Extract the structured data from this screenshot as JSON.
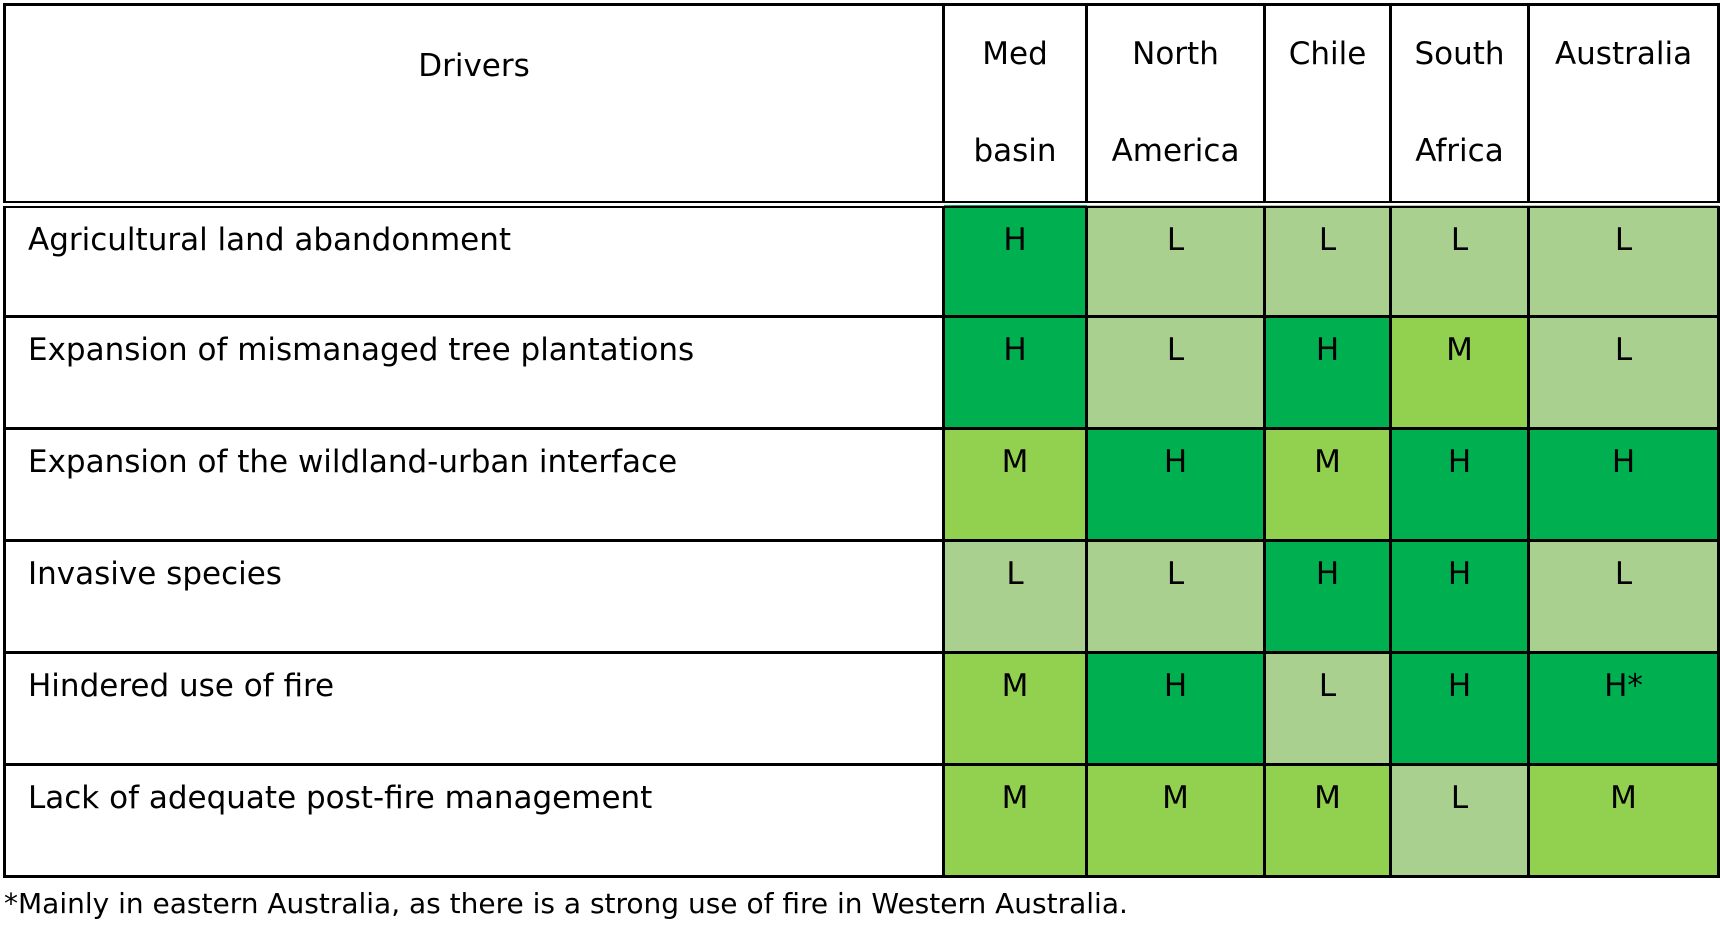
{
  "table": {
    "header": {
      "drivers": "Drivers",
      "columns": [
        [
          "Med",
          "basin"
        ],
        [
          "North",
          "America"
        ],
        [
          "Chile"
        ],
        [
          "South",
          "Africa"
        ],
        [
          "Australia"
        ]
      ]
    },
    "rows": [
      {
        "driver": "Agricultural land abandonment",
        "cells": [
          "H",
          "L",
          "L",
          "L",
          "L"
        ]
      },
      {
        "driver": "Expansion of mismanaged tree plantations",
        "cells": [
          "H",
          "L",
          "H",
          "M",
          "L"
        ]
      },
      {
        "driver": "Expansion of the wildland-urban interface",
        "cells": [
          "M",
          "H",
          "M",
          "H",
          "H"
        ]
      },
      {
        "driver": "Invasive species",
        "cells": [
          "L",
          "L",
          "H",
          "H",
          "L"
        ]
      },
      {
        "driver": "Hindered use of fire",
        "cells": [
          "M",
          "H",
          "L",
          "H",
          "H*"
        ]
      },
      {
        "driver": "Lack of adequate post-fire management",
        "cells": [
          "M",
          "M",
          "M",
          "L",
          "M"
        ]
      }
    ],
    "colors": {
      "H": "#00b050",
      "M": "#92d050",
      "L": "#a9d08e"
    }
  },
  "footnote": "*Mainly in eastern Australia, as there is a strong use of fire in Western Australia."
}
